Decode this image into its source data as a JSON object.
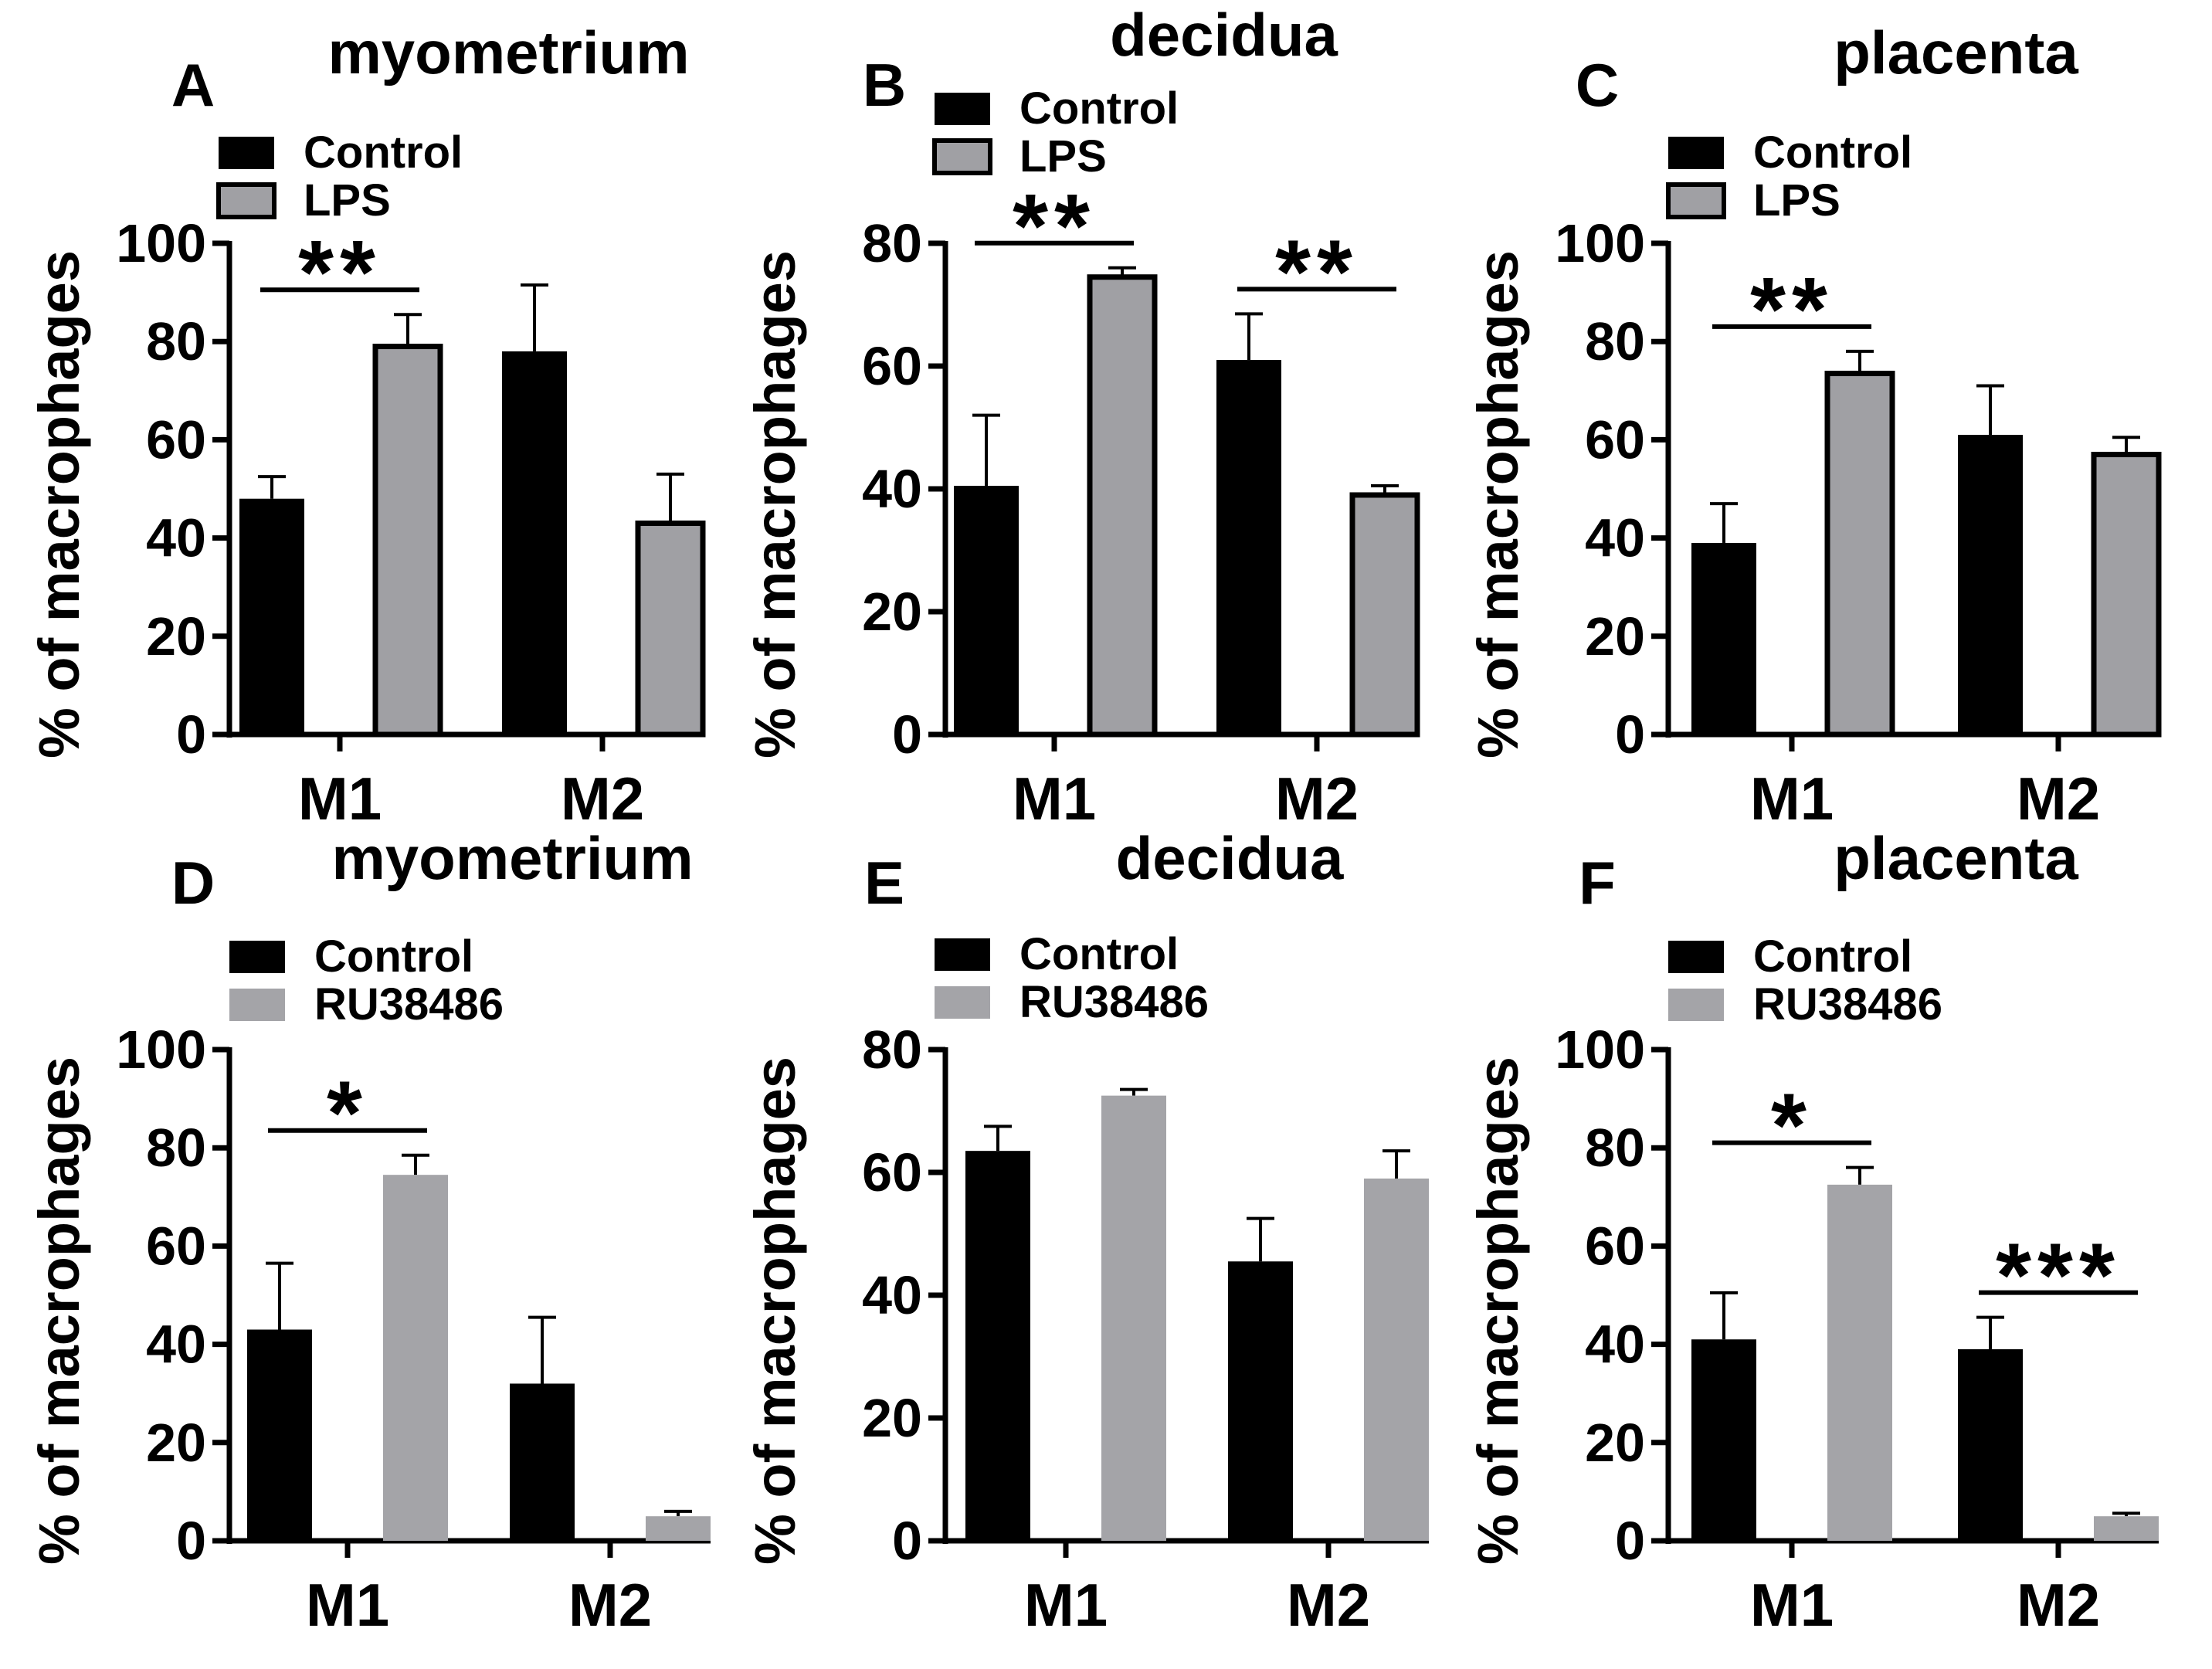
{
  "chart_data": [
    {
      "panel": "A",
      "title": "myometrium",
      "type": "bar",
      "categories": [
        "M1",
        "M2"
      ],
      "series": [
        {
          "name": "Control",
          "values": [
            48,
            78
          ],
          "errors": [
            4.5,
            13.5
          ],
          "color": "#000000"
        },
        {
          "name": "LPS",
          "values": [
            79,
            43
          ],
          "errors": [
            6.5,
            10
          ],
          "color": "#a0a0a4"
        }
      ],
      "ylabel": "% of macrophages",
      "ylim": [
        0,
        100
      ],
      "yticks": [
        0,
        20,
        40,
        60,
        80,
        100
      ],
      "outlined": true,
      "legend": "top-left",
      "significance": [
        {
          "category": "M1",
          "label": "**"
        }
      ]
    },
    {
      "panel": "B",
      "title": "decidua",
      "type": "bar",
      "categories": [
        "M1",
        "M2"
      ],
      "series": [
        {
          "name": "Control",
          "values": [
            40.5,
            61
          ],
          "errors": [
            11.5,
            7.5
          ],
          "color": "#000000"
        },
        {
          "name": "LPS",
          "values": [
            74.5,
            39
          ],
          "errors": [
            1.5,
            1.5
          ],
          "color": "#a0a0a4"
        }
      ],
      "ylabel": "% of macrophages",
      "ylim": [
        0,
        80
      ],
      "yticks": [
        0,
        20,
        40,
        60,
        80
      ],
      "outlined": true,
      "legend": "top-left",
      "significance": [
        {
          "category": "M1",
          "label": "**"
        },
        {
          "category": "M2",
          "label": "**"
        }
      ]
    },
    {
      "panel": "C",
      "title": "placenta",
      "type": "bar",
      "categories": [
        "M1",
        "M2"
      ],
      "series": [
        {
          "name": "Control",
          "values": [
            39,
            61
          ],
          "errors": [
            8,
            10
          ],
          "color": "#000000"
        },
        {
          "name": "LPS",
          "values": [
            73.5,
            57
          ],
          "errors": [
            4.5,
            3.5
          ],
          "color": "#a0a0a4"
        }
      ],
      "ylabel": "% of macrophages",
      "ylim": [
        0,
        100
      ],
      "yticks": [
        0,
        20,
        40,
        60,
        80,
        100
      ],
      "outlined": true,
      "legend": "top-left",
      "significance": [
        {
          "category": "M1",
          "label": "**"
        }
      ]
    },
    {
      "panel": "D",
      "title": "myometrium",
      "type": "bar",
      "categories": [
        "M1",
        "M2"
      ],
      "series": [
        {
          "name": "Control",
          "values": [
            43,
            32
          ],
          "errors": [
            13.5,
            13.5
          ],
          "color": "#000000"
        },
        {
          "name": "RU38486",
          "values": [
            74.5,
            5
          ],
          "errors": [
            4,
            1
          ],
          "color": "#a4a4a8"
        }
      ],
      "ylabel": "% of macrophages",
      "ylim": [
        0,
        100
      ],
      "yticks": [
        0,
        20,
        40,
        60,
        80,
        100
      ],
      "outlined": false,
      "legend": "top-left",
      "significance": [
        {
          "category": "M1",
          "label": "*"
        }
      ]
    },
    {
      "panel": "E",
      "title": "decidua",
      "type": "bar",
      "categories": [
        "M1",
        "M2"
      ],
      "series": [
        {
          "name": "Control",
          "values": [
            63.5,
            45.5
          ],
          "errors": [
            4,
            7
          ],
          "color": "#000000"
        },
        {
          "name": "RU38486",
          "values": [
            72.5,
            59
          ],
          "errors": [
            1,
            4.5
          ],
          "color": "#a4a4a8"
        }
      ],
      "ylabel": "% of macrophages",
      "ylim": [
        0,
        80
      ],
      "yticks": [
        0,
        20,
        40,
        60,
        80
      ],
      "outlined": false,
      "legend": "top-left",
      "significance": []
    },
    {
      "panel": "F",
      "title": "placenta",
      "type": "bar",
      "categories": [
        "M1",
        "M2"
      ],
      "series": [
        {
          "name": "Control",
          "values": [
            41,
            39
          ],
          "errors": [
            9.5,
            6.5
          ],
          "color": "#000000"
        },
        {
          "name": "RU38486",
          "values": [
            72.5,
            5
          ],
          "errors": [
            3.5,
            0.6
          ],
          "color": "#a4a4a8"
        }
      ],
      "ylabel": "% of macrophages",
      "ylim": [
        0,
        100
      ],
      "yticks": [
        0,
        20,
        40,
        60,
        80,
        100
      ],
      "outlined": false,
      "legend": "top-left",
      "significance": [
        {
          "category": "M1",
          "label": "*"
        },
        {
          "category": "M2",
          "label": "***"
        }
      ]
    }
  ]
}
